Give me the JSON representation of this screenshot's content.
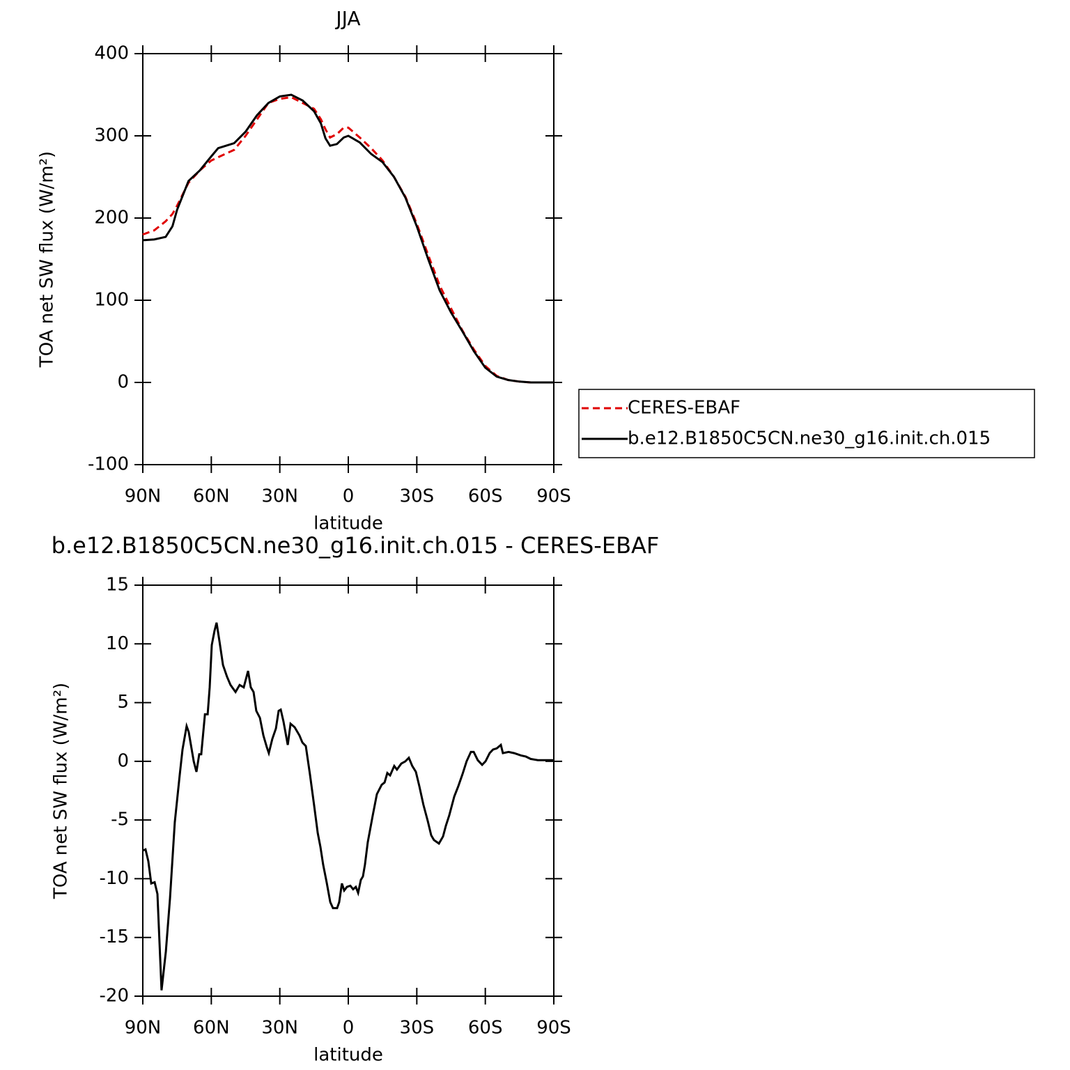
{
  "chart_data": [
    {
      "type": "line",
      "title": "JJA",
      "xlabel": "latitude",
      "ylabel": "TOA net SW flux (W/m²)",
      "x": [
        90,
        85,
        80,
        77,
        75,
        70,
        65,
        60,
        57,
        50,
        45,
        40,
        35,
        30,
        25,
        20,
        15,
        12,
        10,
        8,
        5,
        2,
        0,
        -5,
        -10,
        -15,
        -20,
        -25,
        -30,
        -35,
        -40,
        -45,
        -50,
        -55,
        -60,
        -65,
        -70,
        -75,
        -80,
        -85,
        -90
      ],
      "series": [
        {
          "name": "CERES-EBAF",
          "color": "#e00000",
          "dashed": true,
          "values": [
            180,
            185,
            196,
            205,
            215,
            243,
            258,
            270,
            274,
            283,
            300,
            320,
            340,
            345,
            347,
            340,
            333,
            320,
            308,
            298,
            302,
            310,
            310,
            298,
            285,
            270,
            250,
            226,
            193,
            155,
            118,
            90,
            63,
            40,
            20,
            8,
            3,
            1,
            0,
            0,
            0
          ]
        },
        {
          "name": "b.e12.B1850C5CN.ne30_g16.init.ch.015",
          "color": "#000000",
          "dashed": false,
          "values": [
            173,
            174,
            177,
            190,
            210,
            245,
            258,
            275,
            285,
            291,
            305,
            325,
            340,
            348,
            350,
            343,
            330,
            315,
            297,
            288,
            290,
            298,
            300,
            292,
            278,
            268,
            250,
            225,
            190,
            150,
            112,
            85,
            62,
            38,
            18,
            7,
            3,
            1,
            0,
            0,
            0
          ]
        }
      ],
      "xlim": [
        90,
        -90
      ],
      "xticks": [
        {
          "value": 90,
          "label": "90N"
        },
        {
          "value": 60,
          "label": "60N"
        },
        {
          "value": 30,
          "label": "30N"
        },
        0,
        {
          "value": -30,
          "label": "30S"
        },
        {
          "value": -60,
          "label": "60S"
        },
        {
          "value": -90,
          "label": "90S"
        }
      ],
      "ylim": [
        -100,
        400
      ],
      "yticks": [
        -100,
        0,
        100,
        200,
        300,
        400
      ],
      "legend": "right"
    },
    {
      "type": "line",
      "title": "b.e12.B1850C5CN.ne30_g16.init.ch.015 - CERES-EBAF",
      "xlabel": "latitude",
      "ylabel": "TOA net SW flux (W/m²)",
      "x": [
        90,
        88.8,
        87.6,
        86.3,
        84.8,
        83.6,
        81.8,
        79.9,
        78.1,
        76,
        73.8,
        72.6,
        70.8,
        69.9,
        67.7,
        66.5,
        65.3,
        64.4,
        62.8,
        61.6,
        60.7,
        59.8,
        58.6,
        57.7,
        56.4,
        54.9,
        53.1,
        51.6,
        49.4,
        47.6,
        45.8,
        43.9,
        42.7,
        41.5,
        40.3,
        38.7,
        37.2,
        35.7,
        34.8,
        33.3,
        31.7,
        30.5,
        29.6,
        28.4,
        26.5,
        25.3,
        23.5,
        21.4,
        20.1,
        18.6,
        16.8,
        15,
        13.4,
        12.2,
        11,
        9.5,
        7.9,
        6.7,
        4.9,
        4,
        2.8,
        1.8,
        0.6,
        -0.9,
        -2.1,
        -3.3,
        -4.3,
        -5.5,
        -6.4,
        -7.3,
        -8.5,
        -10.7,
        -12.5,
        -14.6,
        -15.9,
        -17.1,
        -18.3,
        -20.1,
        -21.3,
        -23.2,
        -25,
        -26.5,
        -28,
        -29.6,
        -31.1,
        -32.9,
        -34.8,
        -36.3,
        -37.5,
        -39.7,
        -41.5,
        -42.7,
        -44.2,
        -46.4,
        -48.2,
        -50,
        -51.8,
        -53.7,
        -54.9,
        -56.7,
        -58.6,
        -60.1,
        -61.9,
        -63.4,
        -65,
        -66.8,
        -67.7,
        -70.2,
        -72.6,
        -75.6,
        -77.8,
        -79.9,
        -83,
        -90
      ],
      "series": [
        {
          "color": "#000000",
          "dashed": false,
          "values": [
            -7.6,
            -7.5,
            -8.5,
            -10.4,
            -10.3,
            -11.3,
            -19.5,
            -16.2,
            -11.7,
            -5.2,
            -1.1,
            1.0,
            3.0,
            2.5,
            0,
            -0.9,
            0.6,
            0.6,
            4.0,
            4.0,
            6.3,
            9.9,
            11.1,
            11.8,
            10.2,
            8.2,
            7.2,
            6.5,
            5.9,
            6.5,
            6.3,
            7.7,
            6.3,
            5.9,
            4.3,
            3.7,
            2.2,
            1.2,
            0.7,
            1.9,
            2.8,
            4.3,
            4.4,
            3.4,
            1.4,
            3.2,
            2.9,
            2.2,
            1.6,
            1.3,
            -1.1,
            -3.7,
            -6.1,
            -7.3,
            -8.8,
            -10.3,
            -12.0,
            -12.5,
            -12.5,
            -12.0,
            -10.4,
            -11.0,
            -10.7,
            -10.6,
            -10.9,
            -10.7,
            -11.2,
            -10.1,
            -9.8,
            -8.8,
            -6.9,
            -4.6,
            -2.8,
            -2.0,
            -1.8,
            -1.0,
            -1.2,
            -0.4,
            -0.7,
            -0.2,
            0,
            0.3,
            -0.4,
            -0.9,
            -2.1,
            -3.7,
            -5.1,
            -6.3,
            -6.7,
            -7.0,
            -6.4,
            -5.5,
            -4.6,
            -3.0,
            -2.1,
            -1.1,
            0,
            0.8,
            0.8,
            0.1,
            -0.3,
            0,
            0.7,
            1.0,
            1.1,
            1.4,
            0.7,
            0.8,
            0.7,
            0.5,
            0.4,
            0.2,
            0.1,
            0.1
          ]
        }
      ],
      "xlim": [
        90,
        -90
      ],
      "xticks": [
        {
          "value": 90,
          "label": "90N"
        },
        {
          "value": 60,
          "label": "60N"
        },
        {
          "value": 30,
          "label": "30N"
        },
        0,
        {
          "value": -30,
          "label": "30S"
        },
        {
          "value": -60,
          "label": "60S"
        },
        {
          "value": -90,
          "label": "90S"
        }
      ],
      "ylim": [
        -20,
        15
      ],
      "yticks": [
        -20,
        -15,
        -10,
        -5,
        0,
        5,
        10,
        15
      ]
    }
  ]
}
